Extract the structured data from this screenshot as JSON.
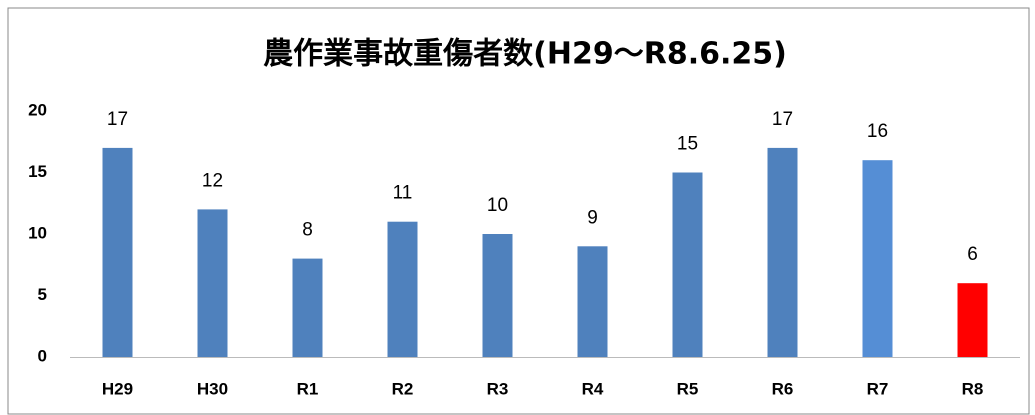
{
  "chart_data": {
    "type": "bar",
    "title": "農作業事故重傷者数(H29〜R8.6.25)",
    "categories": [
      "H29",
      "H30",
      "R1",
      "R2",
      "R3",
      "R4",
      "R5",
      "R6",
      "R7",
      "R8"
    ],
    "values": [
      17,
      12,
      8,
      11,
      10,
      9,
      15,
      17,
      16,
      6
    ],
    "colors": [
      "#4f81bd",
      "#4f81bd",
      "#4f81bd",
      "#4f81bd",
      "#4f81bd",
      "#4f81bd",
      "#4f81bd",
      "#4f81bd",
      "#558ed5",
      "#ff0000"
    ],
    "ylim": [
      0,
      20
    ],
    "yticks": [
      0,
      5,
      10,
      15,
      20
    ],
    "grid": false
  }
}
